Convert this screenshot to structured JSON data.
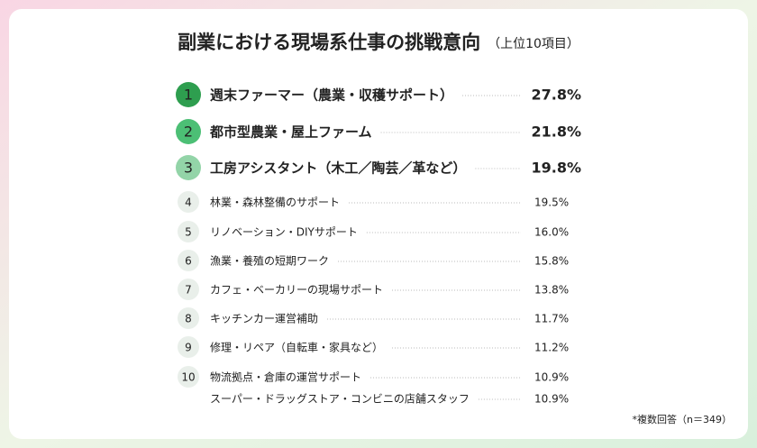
{
  "header": {
    "title": "副業における現場系仕事の挑戦意向",
    "subtitle": "（上位10項目）"
  },
  "items": [
    {
      "rank": "1",
      "label": "週末ファーマー（農業・収穫サポート）",
      "value": "27.8%"
    },
    {
      "rank": "2",
      "label": "都市型農業・屋上ファーム",
      "value": "21.8%"
    },
    {
      "rank": "3",
      "label": "工房アシスタント（木工／陶芸／革など）",
      "value": "19.8%"
    },
    {
      "rank": "4",
      "label": "林業・森林整備のサポート",
      "value": "19.5%"
    },
    {
      "rank": "5",
      "label": "リノベーション・DIYサポート",
      "value": "16.0%"
    },
    {
      "rank": "6",
      "label": "漁業・養殖の短期ワーク",
      "value": "15.8%"
    },
    {
      "rank": "7",
      "label": "カフェ・ベーカリーの現場サポート",
      "value": "13.8%"
    },
    {
      "rank": "8",
      "label": "キッチンカー運営補助",
      "value": "11.7%"
    },
    {
      "rank": "9",
      "label": "修理・リペア（自転車・家具など）",
      "value": "11.2%"
    },
    {
      "rank": "10",
      "label": "物流拠点・倉庫の運営サポート",
      "value": "10.9%"
    },
    {
      "label": "スーパー・ドラッグストア・コンビニの店舗スタッフ",
      "value": "10.9%"
    }
  ],
  "footnote": "*複数回答（n＝349）"
}
